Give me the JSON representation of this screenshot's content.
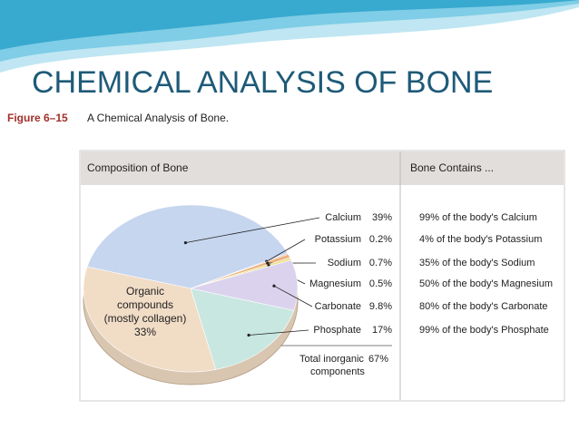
{
  "slide_title": "CHEMICAL ANALYSIS OF BONE",
  "figure_label": "Figure 6–15",
  "figure_caption": "A Chemical Analysis of Bone.",
  "chart_data": {
    "type": "pie",
    "header": "Composition of Bone",
    "categories": [
      "Calcium",
      "Potassium",
      "Sodium",
      "Magnesium",
      "Carbonate",
      "Phosphate",
      "Organic compounds (mostly collagen)"
    ],
    "values": [
      39,
      0.2,
      0.7,
      0.5,
      9.8,
      17,
      33
    ],
    "value_labels": [
      "39%",
      "0.2%",
      "0.7%",
      "0.5%",
      "9.8%",
      "17%",
      "33%"
    ],
    "colors": [
      "#c6d6ef",
      "#d9868a",
      "#eab27e",
      "#eee08e",
      "#dbd3ee",
      "#c9e7e1",
      "#f1dcc6"
    ],
    "annotation": "Total inorganic components",
    "annotation_value": "67%"
  },
  "table": {
    "header": "Bone Contains ...",
    "rows": [
      "99% of the body's Calcium",
      "4% of the body's Potassium",
      "35% of the body's Sodium",
      "50% of the body's Magnesium",
      "80% of the body's Carbonate",
      "99% of the body's Phosphate"
    ]
  }
}
